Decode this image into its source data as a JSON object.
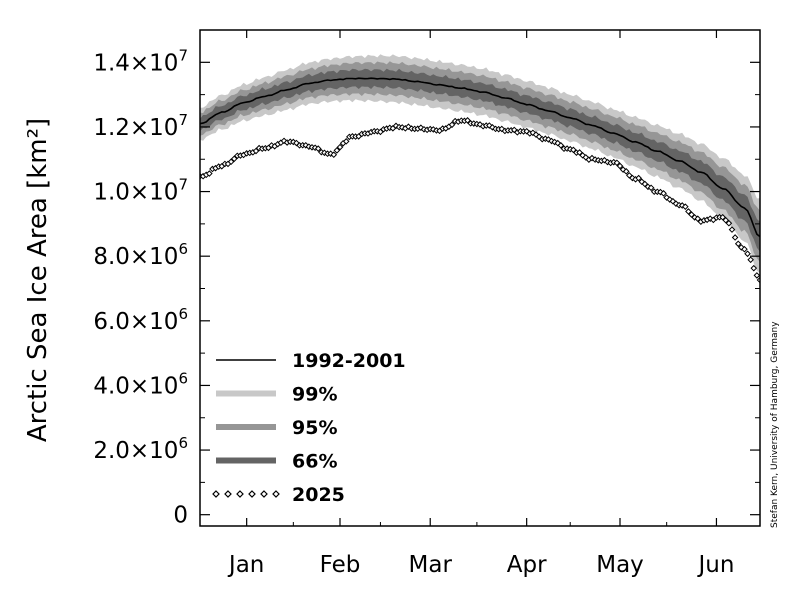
{
  "chart_data": {
    "type": "line",
    "title": "",
    "xlabel": "",
    "ylabel": "Arctic Sea Ice Area [km²]",
    "ylim": [
      -350000,
      15000000
    ],
    "xlim": [
      1,
      181
    ],
    "grid": false,
    "legend_position": "bottom-left",
    "x_ticks": [
      {
        "label": "Jan",
        "x": 16
      },
      {
        "label": "Feb",
        "x": 46
      },
      {
        "label": "Mar",
        "x": 75
      },
      {
        "label": "Apr",
        "x": 106
      },
      {
        "label": "May",
        "x": 136
      },
      {
        "label": "Jun",
        "x": 167
      }
    ],
    "y_ticks": [
      {
        "value": 0,
        "mantissa": "0",
        "exp": ""
      },
      {
        "value": 2000000,
        "mantissa": "2.0×10",
        "exp": "6"
      },
      {
        "value": 4000000,
        "mantissa": "4.0×10",
        "exp": "6"
      },
      {
        "value": 6000000,
        "mantissa": "6.0×10",
        "exp": "6"
      },
      {
        "value": 8000000,
        "mantissa": "8.0×10",
        "exp": "6"
      },
      {
        "value": 10000000,
        "mantissa": "1.0×10",
        "exp": "7"
      },
      {
        "value": 12000000,
        "mantissa": "1.2×10",
        "exp": "7"
      },
      {
        "value": 14000000,
        "mantissa": "1.4×10",
        "exp": "7"
      }
    ],
    "legend": [
      {
        "label": "1992-2001",
        "kind": "line",
        "color": "#000000"
      },
      {
        "label": "99%",
        "kind": "band",
        "color": "#c8c8c8"
      },
      {
        "label": "95%",
        "kind": "band",
        "color": "#969696"
      },
      {
        "label": "66%",
        "kind": "band",
        "color": "#646464"
      },
      {
        "label": "2025",
        "kind": "diamond",
        "color": "#000000"
      }
    ],
    "band_colors": {
      "p99": "#c8c8c8",
      "p95": "#969696",
      "p66": "#646464"
    },
    "x": [
      1,
      8,
      15,
      22,
      29,
      36,
      43,
      50,
      57,
      64,
      71,
      78,
      85,
      92,
      99,
      106,
      113,
      120,
      127,
      134,
      141,
      148,
      155,
      162,
      169,
      176,
      181
    ],
    "series": [
      {
        "name": "1992-2001",
        "values": [
          12100000,
          12450000,
          12750000,
          12950000,
          13150000,
          13350000,
          13450000,
          13500000,
          13500000,
          13480000,
          13400000,
          13300000,
          13200000,
          13080000,
          12900000,
          12700000,
          12500000,
          12280000,
          12050000,
          11800000,
          11530000,
          11250000,
          10950000,
          10600000,
          10100000,
          9500000,
          8600000
        ]
      },
      {
        "name": "2025",
        "values": [
          10450000,
          10800000,
          11150000,
          11350000,
          11550000,
          11400000,
          11150000,
          11700000,
          11850000,
          12000000,
          11950000,
          11900000,
          12200000,
          12050000,
          11900000,
          11850000,
          11600000,
          11300000,
          11000000,
          10900000,
          10400000,
          10000000,
          9600000,
          9100000,
          9200000,
          8200000,
          7300000
        ]
      }
    ],
    "bands": {
      "p66_halfwidth": [
        200000,
        210000,
        220000,
        230000,
        240000,
        250000,
        260000,
        270000,
        270000,
        270000,
        270000,
        270000,
        270000,
        270000,
        270000,
        270000,
        270000,
        270000,
        270000,
        280000,
        290000,
        300000,
        320000,
        340000,
        360000,
        400000,
        450000
      ],
      "p95_halfwidth": [
        350000,
        370000,
        390000,
        410000,
        430000,
        440000,
        460000,
        480000,
        490000,
        500000,
        500000,
        500000,
        500000,
        500000,
        500000,
        500000,
        500000,
        500000,
        510000,
        520000,
        540000,
        560000,
        590000,
        620000,
        660000,
        720000,
        800000
      ],
      "p99_halfwidth": [
        500000,
        530000,
        560000,
        590000,
        620000,
        640000,
        660000,
        680000,
        700000,
        720000,
        720000,
        720000,
        720000,
        720000,
        720000,
        720000,
        720000,
        720000,
        730000,
        740000,
        770000,
        800000,
        840000,
        880000,
        940000,
        1020000,
        1150000
      ]
    }
  },
  "credit": "Stefan Kern, University of Hamburg, Germany"
}
